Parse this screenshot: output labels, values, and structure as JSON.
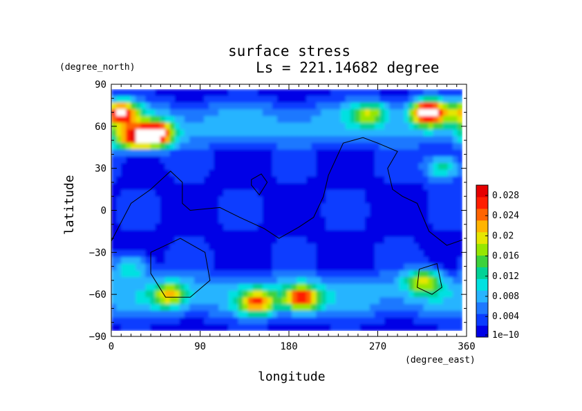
{
  "chart_data": {
    "type": "heatmap",
    "title": "surface stress",
    "subtitle": "Ls = 221.14682 degree",
    "xlabel": "longitude",
    "ylabel": "latitude",
    "x_unit": "(degree_east)",
    "y_unit": "(degree_north)",
    "xlim": [
      0,
      360
    ],
    "ylim": [
      -90,
      90
    ],
    "xticks": [
      "0",
      "90",
      "180",
      "270",
      "360"
    ],
    "yticks": [
      "90",
      "60",
      "30",
      "0",
      "−30",
      "−60",
      "−90"
    ],
    "colorbar": {
      "labels": [
        "0.028",
        "0.024",
        "0.02",
        "0.016",
        "0.012",
        "0.008",
        "0.004",
        "1e−10"
      ],
      "colors": [
        "#0000e6",
        "#0a3cff",
        "#1e78ff",
        "#28b4ff",
        "#00e1e1",
        "#00d296",
        "#3cd23c",
        "#96e600",
        "#e6e600",
        "#ffb400",
        "#ff6400",
        "#ff1e00",
        "#e60000"
      ]
    },
    "background_value": 0.002,
    "field_features": [
      {
        "lon": 45,
        "lat": 53,
        "peak": 0.03,
        "note": "local maximum"
      },
      {
        "lon": 325,
        "lat": 69,
        "peak": 0.03,
        "note": "local maximum"
      },
      {
        "lon": 10,
        "lat": 68,
        "peak": 0.024
      },
      {
        "lon": 20,
        "lat": 50,
        "peak": 0.02
      },
      {
        "lon": 150,
        "lat": -65,
        "peak": 0.02
      },
      {
        "lon": 195,
        "lat": -62,
        "peak": 0.024
      },
      {
        "lon": 60,
        "lat": -60,
        "peak": 0.016
      },
      {
        "lon": 320,
        "lat": -50,
        "peak": 0.016
      },
      {
        "lon": 340,
        "lat": 30,
        "peak": 0.014
      },
      {
        "lon": 265,
        "lat": 68,
        "peak": 0.014
      },
      {
        "lon": 20,
        "lat": -40,
        "peak": 0.012
      }
    ],
    "contours": [
      {
        "name": "tharsis",
        "points": [
          [
            0,
            -22
          ],
          [
            20,
            5
          ],
          [
            40,
            15
          ],
          [
            60,
            28
          ],
          [
            72,
            20
          ],
          [
            72,
            5
          ],
          [
            80,
            0
          ],
          [
            110,
            2
          ],
          [
            130,
            -5
          ],
          [
            155,
            -13
          ],
          [
            170,
            -20
          ],
          [
            190,
            -12
          ],
          [
            205,
            -5
          ],
          [
            215,
            10
          ],
          [
            220,
            25
          ],
          [
            235,
            48
          ],
          [
            255,
            52
          ],
          [
            270,
            48
          ],
          [
            290,
            42
          ],
          [
            280,
            30
          ],
          [
            285,
            15
          ],
          [
            295,
            10
          ],
          [
            310,
            5
          ],
          [
            322,
            -15
          ],
          [
            340,
            -25
          ],
          [
            360,
            -20
          ]
        ]
      },
      {
        "name": "small",
        "points": [
          [
            142,
            22
          ],
          [
            152,
            26
          ],
          [
            158,
            20
          ],
          [
            150,
            11
          ],
          [
            142,
            18
          ],
          [
            142,
            22
          ]
        ]
      },
      {
        "name": "hellas",
        "points": [
          [
            40,
            -30
          ],
          [
            70,
            -20
          ],
          [
            95,
            -30
          ],
          [
            100,
            -50
          ],
          [
            80,
            -62
          ],
          [
            55,
            -62
          ],
          [
            40,
            -45
          ],
          [
            40,
            -30
          ]
        ]
      },
      {
        "name": "argyre",
        "points": [
          [
            312,
            -42
          ],
          [
            330,
            -38
          ],
          [
            335,
            -55
          ],
          [
            325,
            -60
          ],
          [
            310,
            -55
          ],
          [
            312,
            -42
          ]
        ]
      }
    ]
  }
}
